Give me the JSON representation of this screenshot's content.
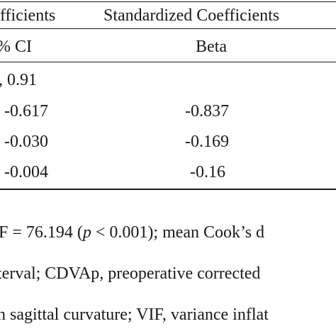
{
  "table": {
    "header": {
      "unstandardized_fragment": "fficients",
      "standardized": "Standardized Coefficients"
    },
    "subheader": {
      "ci_fragment": "% CI",
      "beta": "Beta"
    },
    "rows": [
      {
        "ci": ", 0.91",
        "beta": ""
      },
      {
        "ci": "-0.617",
        "beta": "-0.837"
      },
      {
        "ci": "-0.030",
        "beta": "-0.169"
      },
      {
        "ci": "-0.004",
        "beta": "-0.16"
      }
    ]
  },
  "notes": {
    "line1": {
      "pre": "F = 76.194 (",
      "p": "p",
      "post": " < 0.001); mean Cook’s d"
    },
    "line2": "terval; CDVAp, preoperative corrected",
    "line3": "n sagittal curvature; VIF, variance inflat"
  }
}
